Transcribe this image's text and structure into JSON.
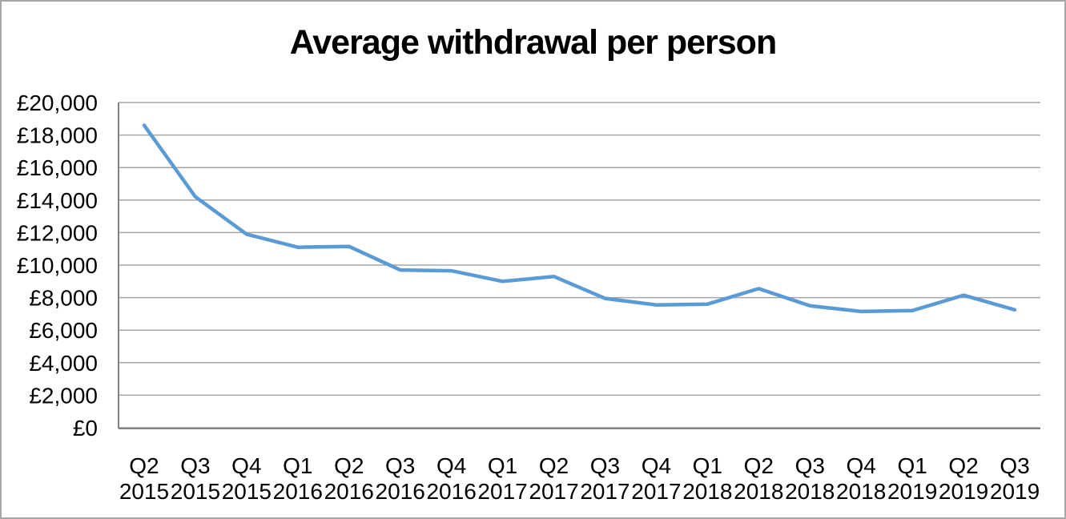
{
  "chart_data": {
    "type": "line",
    "title": "Average withdrawal per person",
    "categories": [
      "Q2 2015",
      "Q3 2015",
      "Q4 2015",
      "Q1 2016",
      "Q2 2016",
      "Q3 2016",
      "Q4 2016",
      "Q1 2017",
      "Q2 2017",
      "Q3 2017",
      "Q4 2017",
      "Q1 2018",
      "Q2 2018",
      "Q3 2018",
      "Q4 2018",
      "Q1 2019",
      "Q2 2019",
      "Q3 2019"
    ],
    "values": [
      18600,
      14200,
      11900,
      11100,
      11150,
      9700,
      9650,
      9000,
      9300,
      7950,
      7550,
      7600,
      8550,
      7500,
      7150,
      7200,
      8150,
      7250
    ],
    "xlabel": "",
    "ylabel": "",
    "ylim": [
      0,
      20000
    ],
    "ytick_step": 2000,
    "ytick_labels": [
      "£0",
      "£2,000",
      "£4,000",
      "£6,000",
      "£8,000",
      "£10,000",
      "£12,000",
      "£14,000",
      "£16,000",
      "£18,000",
      "£20,000"
    ],
    "grid": true,
    "legend": "none",
    "colors": {
      "line": "#5b9bd5",
      "gridline": "#a6a6a6",
      "axis": "#808080",
      "text": "#000000",
      "background": "#ffffff",
      "border": "#a6a6a6"
    }
  }
}
